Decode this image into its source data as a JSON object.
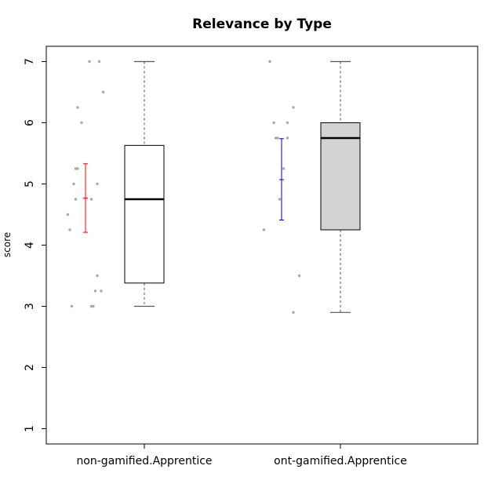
{
  "chart_data": {
    "type": "boxplot",
    "title": "Relevance by Type",
    "xlabel": "",
    "ylabel": "score",
    "ylim": [
      0.75,
      7.25
    ],
    "yticks": [
      "1",
      "2",
      "3",
      "4",
      "5",
      "6",
      "7"
    ],
    "grid": false,
    "colors": {
      "box_fill": [
        "#ffffff",
        "#d3d3d3"
      ],
      "points": "#a8a8a8",
      "error_bars": [
        "#ff0000",
        "#0000cd"
      ]
    },
    "groups": [
      {
        "label": "non-gamified.Apprentice",
        "box": {
          "min": 3.0,
          "q1": 3.38,
          "median": 4.75,
          "q3": 5.63,
          "max": 7.0
        },
        "mean_bar": {
          "mean": 4.77,
          "low": 4.21,
          "high": 5.33
        },
        "points": [
          {
            "y": 7.0,
            "dx": 0.02
          },
          {
            "y": 7.0,
            "dx": 0.07
          },
          {
            "y": 6.5,
            "dx": 0.09
          },
          {
            "y": 6.25,
            "dx": -0.04
          },
          {
            "y": 6.0,
            "dx": -0.02
          },
          {
            "y": 5.25,
            "dx": -0.05
          },
          {
            "y": 5.25,
            "dx": -0.04
          },
          {
            "y": 5.0,
            "dx": -0.06
          },
          {
            "y": 5.0,
            "dx": 0.06
          },
          {
            "y": 4.75,
            "dx": -0.05
          },
          {
            "y": 4.75,
            "dx": 0.03
          },
          {
            "y": 4.5,
            "dx": -0.09
          },
          {
            "y": 4.25,
            "dx": -0.08
          },
          {
            "y": 3.5,
            "dx": 0.06
          },
          {
            "y": 3.25,
            "dx": 0.05
          },
          {
            "y": 3.25,
            "dx": 0.08
          },
          {
            "y": 3.0,
            "dx": -0.07
          },
          {
            "y": 3.0,
            "dx": 0.03
          },
          {
            "y": 3.0,
            "dx": 0.04
          }
        ]
      },
      {
        "label": "ont-gamified.Apprentice",
        "box": {
          "min": 2.9,
          "q1": 4.25,
          "median": 5.75,
          "q3": 6.0,
          "max": 7.0
        },
        "mean_bar": {
          "mean": 5.07,
          "low": 4.41,
          "high": 5.74
        },
        "points": [
          {
            "y": 7.0,
            "dx": -0.06
          },
          {
            "y": 6.25,
            "dx": 0.06
          },
          {
            "y": 6.0,
            "dx": -0.04
          },
          {
            "y": 6.0,
            "dx": 0.03
          },
          {
            "y": 5.75,
            "dx": -0.03
          },
          {
            "y": 5.75,
            "dx": -0.02
          },
          {
            "y": 5.75,
            "dx": 0.03
          },
          {
            "y": 5.25,
            "dx": 0.01
          },
          {
            "y": 4.75,
            "dx": -0.01
          },
          {
            "y": 4.25,
            "dx": -0.09
          },
          {
            "y": 3.5,
            "dx": 0.09
          },
          {
            "y": 2.9,
            "dx": 0.06
          }
        ]
      }
    ]
  }
}
